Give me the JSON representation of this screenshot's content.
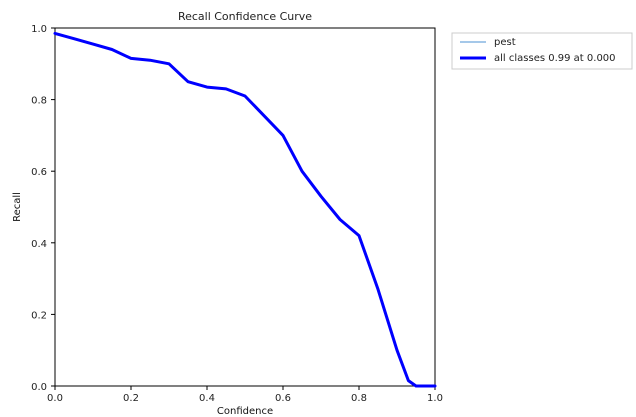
{
  "chart_data": {
    "type": "line",
    "title": "Recall Confidence Curve",
    "xlabel": "Confidence",
    "ylabel": "Recall",
    "xlim": [
      0,
      1
    ],
    "ylim": [
      0,
      1
    ],
    "x_ticks": [
      "0.0",
      "0.2",
      "0.4",
      "0.6",
      "0.8",
      "1.0"
    ],
    "y_ticks": [
      "0.0",
      "0.2",
      "0.4",
      "0.6",
      "0.8",
      "1.0"
    ],
    "grid": false,
    "legend_position": "outside-top-right",
    "series": [
      {
        "name": "pest",
        "color": "#6fa8dc",
        "line": "thin",
        "x": [
          0.0,
          0.05,
          0.1,
          0.15,
          0.2,
          0.25,
          0.3,
          0.35,
          0.4,
          0.45,
          0.5,
          0.55,
          0.6,
          0.65,
          0.7,
          0.75,
          0.8,
          0.85,
          0.9,
          0.93,
          0.95,
          1.0
        ],
        "y": [
          0.985,
          0.97,
          0.955,
          0.94,
          0.915,
          0.91,
          0.9,
          0.85,
          0.835,
          0.83,
          0.81,
          0.755,
          0.7,
          0.6,
          0.53,
          0.465,
          0.42,
          0.27,
          0.1,
          0.015,
          0.0,
          0.0
        ]
      },
      {
        "name": "all classes 0.99 at 0.000",
        "color": "#0000ff",
        "line": "thick",
        "x": [
          0.0,
          0.05,
          0.1,
          0.15,
          0.2,
          0.25,
          0.3,
          0.35,
          0.4,
          0.45,
          0.5,
          0.55,
          0.6,
          0.65,
          0.7,
          0.75,
          0.8,
          0.85,
          0.9,
          0.93,
          0.95,
          1.0
        ],
        "y": [
          0.985,
          0.97,
          0.955,
          0.94,
          0.915,
          0.91,
          0.9,
          0.85,
          0.835,
          0.83,
          0.81,
          0.755,
          0.7,
          0.6,
          0.53,
          0.465,
          0.42,
          0.27,
          0.1,
          0.015,
          0.0,
          0.0
        ]
      }
    ]
  }
}
